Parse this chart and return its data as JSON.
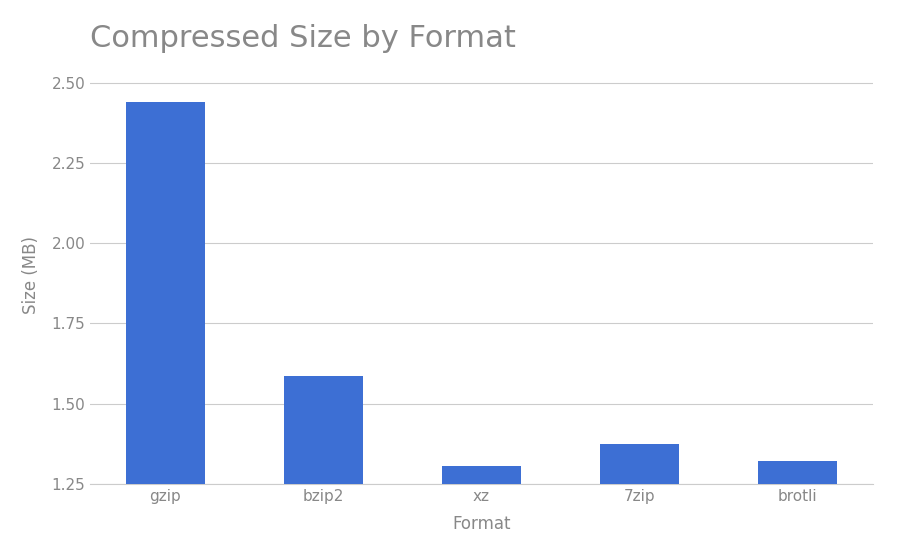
{
  "title": "Compressed Size by Format",
  "categories": [
    "gzip",
    "bzip2",
    "xz",
    "7zip",
    "brotli"
  ],
  "values": [
    2.44,
    1.585,
    1.305,
    1.375,
    1.32
  ],
  "bar_color": "#3d6fd4",
  "xlabel": "Format",
  "ylabel": "Size (MB)",
  "ylim": [
    1.25,
    2.55
  ],
  "yticks": [
    1.25,
    1.5,
    1.75,
    2.0,
    2.25,
    2.5
  ],
  "title_fontsize": 22,
  "label_fontsize": 12,
  "tick_fontsize": 11,
  "background_color": "#ffffff",
  "bar_width": 0.5,
  "grid_color": "#cccccc",
  "text_color": "#888888"
}
